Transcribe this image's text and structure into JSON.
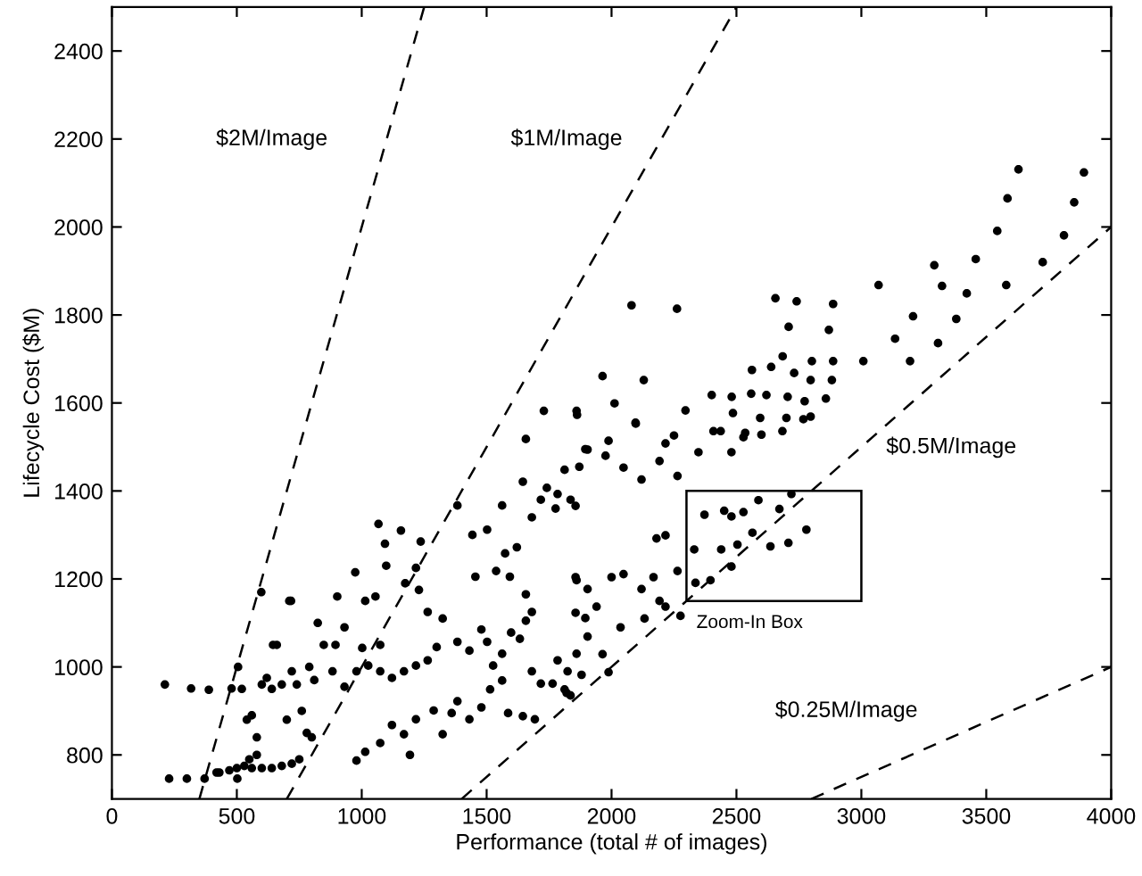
{
  "chart_data": {
    "type": "scatter",
    "xlabel": "Performance (total # of images)",
    "ylabel": "Lifecycle Cost ($M)",
    "xlim": [
      0,
      4000
    ],
    "ylim": [
      700,
      2500
    ],
    "xticks": [
      0,
      500,
      1000,
      1500,
      2000,
      2500,
      3000,
      3500,
      4000
    ],
    "yticks": [
      800,
      1000,
      1200,
      1400,
      1600,
      1800,
      2000,
      2200,
      2400
    ],
    "grid": false,
    "legend": false,
    "series": [
      {
        "marker": "circle",
        "color": "#000000",
        "x": [
          212,
          229,
          300,
          371,
          317,
          388,
          479,
          502,
          419,
          430,
          470,
          500,
          530,
          560,
          600,
          640,
          680,
          720,
          750,
          550,
          580,
          505,
          520,
          540,
          560,
          580,
          600,
          620,
          640,
          660,
          680,
          700,
          710,
          720,
          740,
          760,
          780,
          790,
          810,
          800,
          598,
          645,
          717,
          824,
          902,
          931,
          974,
          1014,
          1055,
          1067,
          1093,
          1098,
          1157,
          1174,
          1236,
          1217,
          1264,
          1229,
          1324,
          1300,
          883,
          931,
          979,
          1026,
          1074,
          1121,
          1169,
          1217,
          1264,
          848,
          895,
          1002,
          1074,
          979,
          1014,
          1074,
          1121,
          1169,
          1193,
          1217,
          1288,
          1324,
          1360,
          1383,
          1431,
          1479,
          1514,
          1526,
          1562,
          1586,
          1645,
          1693,
          1681,
          1717,
          1383,
          1431,
          1479,
          1502,
          1562,
          1598,
          1633,
          1657,
          1657,
          1681,
          1657,
          1383,
          1443,
          1455,
          1502,
          1538,
          1562,
          1574,
          1593,
          1621,
          1645,
          1681,
          1717,
          1741,
          1776,
          1812,
          1836,
          1871,
          1895,
          1729,
          1860,
          1764,
          1812,
          1824,
          1860,
          1895,
          1860,
          1836,
          1784,
          1856,
          1904,
          1976,
          1988,
          2048,
          2096,
          2120,
          2192,
          2216,
          2264,
          2348,
          2408,
          2480,
          2528,
          2600,
          2684,
          2768,
          1856,
          1904,
          1940,
          2000,
          2048,
          2120,
          2168,
          2192,
          2216,
          2264,
          1856,
          1904,
          1964,
          1880,
          1988,
          1820,
          1784,
          2132,
          2036,
          2180,
          2216,
          2276,
          2331,
          2372,
          2439,
          2451,
          2480,
          2528,
          2564,
          2588,
          2636,
          2672,
          2720,
          2708,
          2780,
          2336,
          2396,
          2480,
          2504,
          2080,
          2262,
          2656,
          2741,
          2887,
          3069,
          2709,
          2870,
          3135,
          3207,
          3195,
          3307,
          3380,
          3422,
          3458,
          3292,
          3323,
          3580,
          3544,
          3585,
          3629,
          3726,
          3811,
          3852,
          3891,
          2685,
          2802,
          2887,
          3008,
          2797,
          2882,
          2562,
          2639,
          2731,
          1964,
          2129,
          1862,
          2012,
          2296,
          2401,
          2481,
          2559,
          2620,
          2705,
          2773,
          2858,
          2486,
          2595,
          2700,
          2797,
          2097,
          2250,
          2437,
          2535
        ],
        "values": [
          960,
          746,
          746,
          746,
          951,
          948,
          951,
          746,
          760,
          760,
          765,
          770,
          775,
          770,
          770,
          770,
          775,
          780,
          790,
          790,
          800,
          1000,
          950,
          880,
          890,
          840,
          960,
          975,
          950,
          1050,
          960,
          880,
          1150,
          990,
          960,
          900,
          850,
          1000,
          970,
          840,
          1170,
          1050,
          1150,
          1100,
          1160,
          1090,
          1215,
          1150,
          1160,
          1325,
          1280,
          1230,
          1310,
          1190,
          1285,
          1225,
          1125,
          1175,
          1110,
          1045,
          990,
          955,
          990,
          1003,
          990,
          975,
          990,
          1003,
          1015,
          1050,
          1050,
          1043,
          1050,
          787,
          807,
          827,
          868,
          847,
          800,
          881,
          901,
          847,
          895,
          922,
          881,
          908,
          949,
          1003,
          969,
          895,
          888,
          881,
          990,
          962,
          1057,
          1037,
          1085,
          1057,
          1030,
          1078,
          1064,
          1105,
          1165,
          1125,
          1518,
          1367,
          1300,
          1205,
          1312,
          1218,
          1367,
          1258,
          1205,
          1272,
          1421,
          1340,
          1380,
          1407,
          1360,
          1448,
          1380,
          1455,
          1495,
          1582,
          1582,
          962,
          949,
          990,
          1030,
          1111,
          1197,
          935,
          1393,
          1366,
          1494,
          1480,
          1514,
          1453,
          1555,
          1426,
          1468,
          1508,
          1434,
          1488,
          1536,
          1488,
          1522,
          1528,
          1536,
          1563,
          1204,
          1177,
          1137,
          1204,
          1211,
          1177,
          1204,
          1150,
          1137,
          1218,
          1123,
          1069,
          1029,
          982,
          988,
          941,
          1015,
          1110,
          1090,
          1292,
          1299,
          1116,
          1267,
          1346,
          1267,
          1355,
          1342,
          1352,
          1305,
          1379,
          1274,
          1359,
          1393,
          1282,
          1312,
          1191,
          1197,
          1228,
          1278,
          1822,
          1814,
          1838,
          1831,
          1825,
          1868,
          1773,
          1766,
          1746,
          1797,
          1695,
          1736,
          1791,
          1849,
          1927,
          1913,
          1866,
          1868,
          1991,
          2065,
          2131,
          1920,
          1981,
          2056,
          2124,
          1706,
          1695,
          1695,
          1695,
          1652,
          1652,
          1675,
          1682,
          1668,
          1661,
          1652,
          1573,
          1599,
          1583,
          1618,
          1614,
          1621,
          1618,
          1614,
          1604,
          1610,
          1577,
          1566,
          1566,
          1569,
          1553,
          1526,
          1536,
          1532
        ]
      },
      {
        "type": "line",
        "marker": "none",
        "line_style": "dashed",
        "color": "#000000",
        "x": [
          350,
          1250
        ],
        "values": [
          700,
          2500
        ]
      },
      {
        "type": "line",
        "marker": "none",
        "line_style": "dashed",
        "color": "#000000",
        "x": [
          700,
          2500
        ],
        "values": [
          700,
          2500
        ]
      },
      {
        "type": "line",
        "marker": "none",
        "line_style": "dashed",
        "color": "#000000",
        "x": [
          1400,
          4000
        ],
        "values": [
          700,
          2000
        ]
      },
      {
        "type": "line",
        "marker": "none",
        "line_style": "dashed",
        "color": "#000000",
        "x": [
          2800,
          4000
        ],
        "values": [
          700,
          1000
        ]
      }
    ],
    "annotations": [
      "$2M/Image",
      "$1M/Image",
      "$0.5M/Image",
      "$0.25M/Image",
      "Zoom-In Box"
    ]
  }
}
